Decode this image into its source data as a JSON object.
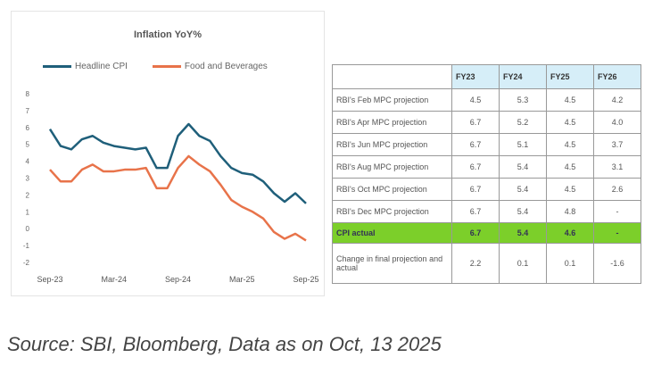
{
  "chart_data": {
    "type": "line",
    "title": "Inflation YoY%",
    "x": [
      "Sep-23",
      "Oct-23",
      "Nov-23",
      "Dec-23",
      "Jan-24",
      "Feb-24",
      "Mar-24",
      "Apr-24",
      "May-24",
      "Jun-24",
      "Jul-24",
      "Aug-24",
      "Sep-24",
      "Oct-24",
      "Nov-24",
      "Dec-24",
      "Jan-25",
      "Feb-25",
      "Mar-25",
      "Apr-25",
      "May-25",
      "Jun-25",
      "Jul-25",
      "Aug-25",
      "Sep-25"
    ],
    "xticks": [
      "Sep-23",
      "Mar-24",
      "Sep-24",
      "Mar-25",
      "Sep-25"
    ],
    "yticks": [
      8,
      7,
      6,
      5,
      4,
      3,
      2,
      1,
      0,
      -1,
      -2
    ],
    "ylim": [
      -2,
      8
    ],
    "legend_position": "top",
    "series": [
      {
        "name": "Headline CPI",
        "color": "#1f5f7a",
        "values": [
          5.9,
          4.9,
          4.7,
          5.3,
          5.5,
          5.1,
          4.9,
          4.8,
          4.7,
          4.8,
          3.6,
          3.6,
          5.5,
          6.2,
          5.5,
          5.2,
          4.3,
          3.6,
          3.3,
          3.2,
          2.8,
          2.1,
          1.6,
          2.1,
          1.5
        ]
      },
      {
        "name": "Food and Beverages",
        "color": "#e8734a",
        "values": [
          3.5,
          2.8,
          2.8,
          3.5,
          3.8,
          3.4,
          3.4,
          3.5,
          3.5,
          3.6,
          2.4,
          2.4,
          3.6,
          4.3,
          3.8,
          3.4,
          2.6,
          1.7,
          1.3,
          1.0,
          0.6,
          -0.2,
          -0.6,
          -0.3,
          -0.7
        ]
      }
    ]
  },
  "table": {
    "headers": [
      "FY23",
      "FY24",
      "FY25",
      "FY26"
    ],
    "rows": [
      {
        "label": "RBI's Feb MPC projection",
        "values": [
          "4.5",
          "5.3",
          "4.5",
          "4.2"
        ]
      },
      {
        "label": "RBI's Apr MPC projection",
        "values": [
          "6.7",
          "5.2",
          "4.5",
          "4.0"
        ]
      },
      {
        "label": "RBI's Jun MPC projection",
        "values": [
          "6.7",
          "5.1",
          "4.5",
          "3.7"
        ]
      },
      {
        "label": "RBI's Aug MPC projection",
        "values": [
          "6.7",
          "5.4",
          "4.5",
          "3.1"
        ]
      },
      {
        "label": "RBI's Oct MPC projection",
        "values": [
          "6.7",
          "5.4",
          "4.5",
          "2.6"
        ]
      },
      {
        "label": "RBI's Dec MPC projection",
        "values": [
          "6.7",
          "5.4",
          "4.8",
          "-"
        ]
      },
      {
        "label": "CPI actual",
        "values": [
          "6.7",
          "5.4",
          "4.6",
          "-"
        ]
      },
      {
        "label": "Change in final projection and actual",
        "values": [
          "2.2",
          "0.1",
          "0.1",
          "-1.6"
        ]
      }
    ]
  },
  "source": "Source: SBI, Bloomberg, Data as on Oct, 13 2025"
}
